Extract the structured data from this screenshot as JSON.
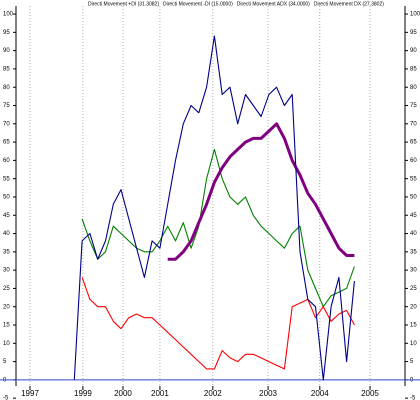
{
  "chart_data": {
    "type": "line",
    "x": [
      15,
      17,
      19,
      21,
      23,
      25,
      27,
      29,
      31,
      33,
      35,
      37,
      39,
      41,
      43,
      45,
      47,
      49,
      51,
      53,
      55,
      57,
      59,
      61,
      63,
      65,
      67,
      69,
      71,
      73,
      75,
      77,
      79,
      81,
      83,
      85,
      87
    ],
    "xlim": [
      0,
      100
    ],
    "xticks": [
      {
        "value": 3.6,
        "label": "1997"
      },
      {
        "value": 17.2,
        "label": "1999"
      },
      {
        "value": 27.5,
        "label": "2000"
      },
      {
        "value": 37,
        "label": "2001"
      },
      {
        "value": 50.6,
        "label": "2002"
      },
      {
        "value": 64.8,
        "label": "2003"
      },
      {
        "value": 78.1,
        "label": "2004"
      },
      {
        "value": 91,
        "label": "2005"
      }
    ],
    "ylim": [
      -5.5,
      102.2
    ],
    "yticks": [
      -5,
      0,
      5,
      10,
      15,
      20,
      25,
      30,
      35,
      40,
      45,
      50,
      55,
      60,
      65,
      70,
      75,
      80,
      85,
      90,
      95,
      100
    ],
    "grid": true,
    "series": [
      {
        "name": "Directi Movement +DI (31.3082)",
        "color": "#008000",
        "values": [
          null,
          44,
          38,
          33,
          35,
          42,
          40,
          38,
          36,
          35,
          35,
          38,
          42,
          38,
          43,
          36,
          42,
          55,
          63,
          55,
          50,
          48,
          50,
          45,
          42,
          40,
          38,
          36,
          40,
          42,
          30,
          25,
          20,
          23,
          24,
          25,
          31
        ]
      },
      {
        "name": "Directi Movement -DI (15.0000)",
        "color": "#ff0000",
        "values": [
          null,
          28,
          22,
          20,
          20,
          16,
          14,
          17,
          18,
          17,
          17,
          15,
          13,
          11,
          9,
          7,
          5,
          3,
          3,
          8,
          6,
          5,
          7,
          7,
          6,
          5,
          4,
          3,
          20,
          21,
          22,
          17,
          20,
          16,
          18,
          19,
          15
        ]
      },
      {
        "name": "Directi Movement ADX (34.0000)",
        "color": "#800080",
        "width": 3,
        "values": [
          null,
          null,
          null,
          null,
          null,
          null,
          null,
          null,
          null,
          null,
          null,
          null,
          33,
          33,
          35,
          38,
          43,
          48,
          54,
          58,
          61,
          63,
          65,
          66,
          66,
          68,
          70,
          66,
          60,
          56,
          51,
          48,
          44,
          40,
          36,
          34,
          34
        ]
      },
      {
        "name": "Directi Movement DX (27.3802)",
        "color": "#00008b",
        "values": [
          0,
          38,
          40,
          33,
          38,
          48,
          52,
          44,
          36,
          28,
          38,
          36,
          48,
          60,
          70,
          75,
          73,
          80,
          94,
          78,
          80,
          70,
          78,
          75,
          72,
          78,
          80,
          75,
          78,
          35,
          22,
          20,
          0,
          20,
          28,
          5,
          27
        ]
      }
    ]
  }
}
